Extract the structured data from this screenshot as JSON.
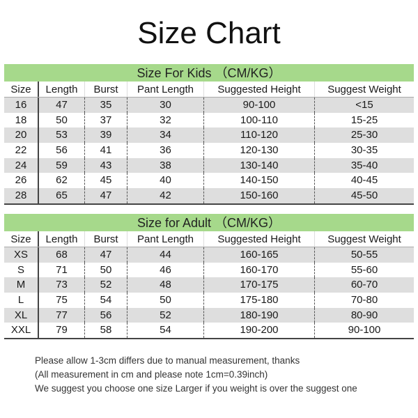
{
  "title": "Size Chart",
  "colors": {
    "banner": "#a6d98b",
    "stripe": "#dedede"
  },
  "columns": [
    "Size",
    "Length",
    "Burst",
    "Pant Length",
    "Suggested Height",
    "Suggest Weight"
  ],
  "kids": {
    "heading": "Size For Kids （CM/KG）",
    "rows": [
      [
        "16",
        "47",
        "35",
        "30",
        "90-100",
        "<15"
      ],
      [
        "18",
        "50",
        "37",
        "32",
        "100-110",
        "15-25"
      ],
      [
        "20",
        "53",
        "39",
        "34",
        "110-120",
        "25-30"
      ],
      [
        "22",
        "56",
        "41",
        "36",
        "120-130",
        "30-35"
      ],
      [
        "24",
        "59",
        "43",
        "38",
        "130-140",
        "35-40"
      ],
      [
        "26",
        "62",
        "45",
        "40",
        "140-150",
        "40-45"
      ],
      [
        "28",
        "65",
        "47",
        "42",
        "150-160",
        "45-50"
      ]
    ]
  },
  "adult": {
    "heading": "Size for Adult （CM/KG）",
    "rows": [
      [
        "XS",
        "68",
        "47",
        "44",
        "160-165",
        "50-55"
      ],
      [
        "S",
        "71",
        "50",
        "46",
        "160-170",
        "55-60"
      ],
      [
        "M",
        "73",
        "52",
        "48",
        "170-175",
        "60-70"
      ],
      [
        "L",
        "75",
        "54",
        "50",
        "175-180",
        "70-80"
      ],
      [
        "XL",
        "77",
        "56",
        "52",
        "180-190",
        "80-90"
      ],
      [
        "XXL",
        "79",
        "58",
        "54",
        "190-200",
        "90-100"
      ]
    ]
  },
  "notes": [
    "Please allow 1-3cm differs due to manual measurement, thanks",
    "(All measurement in cm and please note 1cm=0.39inch)",
    "We suggest you choose one size Larger if you weight is over the suggest one"
  ]
}
